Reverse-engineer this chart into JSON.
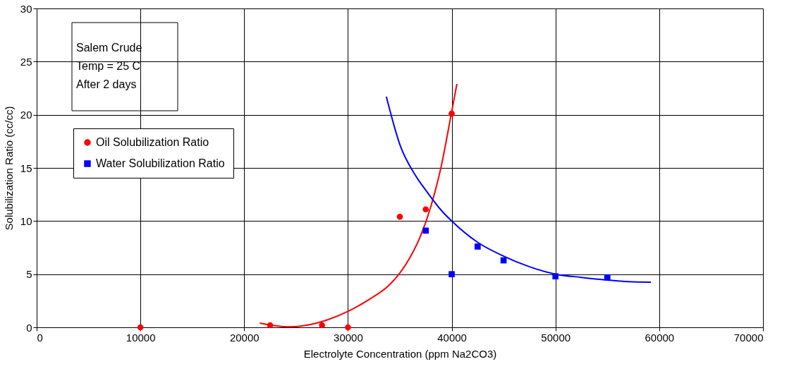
{
  "chart_data": {
    "type": "scatter",
    "xlabel": "Electrolyte Concentration (ppm Na2CO3)",
    "ylabel": "Solubilization Ratio (cc/cc)",
    "annotations": [
      "Salem Crude",
      "Temp = 25 C",
      "After  2 days"
    ],
    "xlim": [
      0,
      70000
    ],
    "xticks": [
      0,
      10000,
      20000,
      30000,
      40000,
      50000,
      60000,
      70000
    ],
    "ylim": [
      0,
      30
    ],
    "yticks": [
      0,
      5,
      10,
      15,
      20,
      25,
      30
    ],
    "grid": true,
    "legend": "top left",
    "series": [
      {
        "name": "Oil Solubilization Ratio",
        "color": "#ff0000",
        "marker": "circle",
        "x": [
          10000,
          22500,
          27500,
          30000,
          35000,
          37500,
          40000
        ],
        "values": [
          0,
          0.2,
          0.2,
          0,
          10.4,
          11.1,
          20.1
        ]
      },
      {
        "name": "Water Solubilization Ratio",
        "color": "#0000ff",
        "marker": "square",
        "x": [
          37500,
          40000,
          42500,
          45000,
          50000,
          55000
        ],
        "values": [
          9.1,
          5.0,
          7.6,
          6.3,
          4.8,
          4.7
        ]
      },
      {
        "type": "line",
        "color": "#ff0000",
        "marker": "none",
        "line_style": "solid",
        "x": [
          21500,
          23000,
          24500,
          26000,
          28000,
          30000,
          32000,
          34000,
          35000,
          36000,
          37000,
          38000,
          39000,
          40000,
          40500
        ],
        "values": [
          0.4,
          0.15,
          0.05,
          0.2,
          0.7,
          1.5,
          2.6,
          4.0,
          5.1,
          6.6,
          8.6,
          11.4,
          15.2,
          20.3,
          22.9
        ]
      },
      {
        "type": "line",
        "color": "#0000ff",
        "marker": "none",
        "line_style": "solid",
        "x": [
          33700,
          35000,
          36500,
          37500,
          39000,
          40000,
          42500,
          45000,
          47500,
          50000,
          52500,
          55000,
          57000,
          59200
        ],
        "values": [
          21.7,
          17.2,
          14.3,
          12.9,
          11.0,
          10.0,
          8.0,
          6.7,
          5.7,
          5.0,
          4.7,
          4.45,
          4.3,
          4.25
        ]
      }
    ]
  }
}
